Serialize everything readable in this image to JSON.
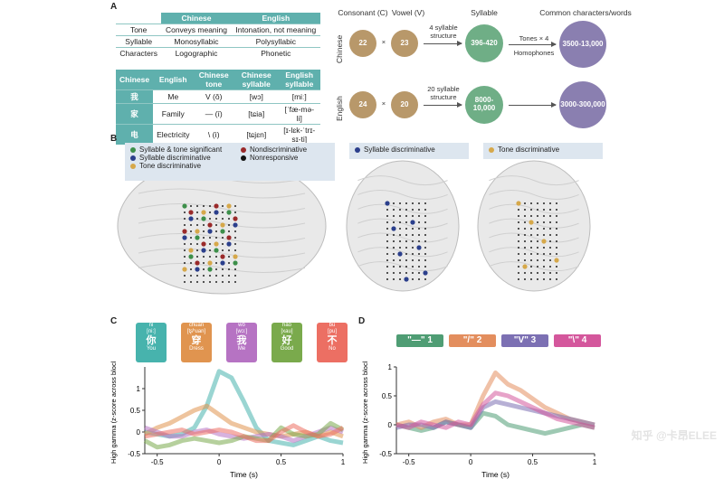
{
  "panels": {
    "a": "A",
    "b": "B",
    "c": "C",
    "d": "D"
  },
  "table1": {
    "headers": [
      "",
      "Chinese",
      "English"
    ],
    "rows": [
      [
        "Tone",
        "Conveys meaning",
        "Intonation, not meaning"
      ],
      [
        "Syllable",
        "Monosyllabic",
        "Polysyllabic"
      ],
      [
        "Characters",
        "Logographic",
        "Phonetic"
      ]
    ]
  },
  "table2": {
    "headers": [
      "Chinese",
      "English",
      "Chinese tone",
      "Chinese syllable",
      "English syllable"
    ],
    "rows": [
      [
        "我",
        "Me",
        "V (ǒ)",
        "[wɔ]",
        "[miː]"
      ],
      [
        "家",
        "Family",
        "— (ī)",
        "[tɕia]",
        "[ˈfæ-mə-li]"
      ],
      [
        "电",
        "Electricity",
        "\\ (ì)",
        "[tɕjɛn]",
        "[ɪ-lɛk-ˈtrɪ-sɪ-ti]"
      ]
    ]
  },
  "flow": {
    "col_consonant": "Consonant (C)",
    "col_vowel": "Vowel (V)",
    "col_syllable": "Syllable",
    "col_common": "Common characters/words",
    "times": "×",
    "chinese": {
      "label": "Chinese",
      "c": "22",
      "v": "23",
      "structure": "4 syllable structure",
      "syllable": "396-420",
      "tones": "Tones × 4",
      "homophones": "Homophones",
      "words": "3500-13,000"
    },
    "english": {
      "label": "English",
      "c": "24",
      "v": "20",
      "structure": "20 syllable structure",
      "syllable": "8000-10,000",
      "words": "3000-300,000"
    }
  },
  "legend1": {
    "items": [
      {
        "label": "Syllable & tone significant",
        "color": "#3d8f4a"
      },
      {
        "label": "Syllable discriminative",
        "color": "#2b3f8c"
      },
      {
        "label": "Tone discriminative",
        "color": "#d6a84a"
      },
      {
        "label": "Nondiscriminative",
        "color": "#9a2a2a"
      },
      {
        "label": "Nonresponsive",
        "color": "#111111"
      }
    ]
  },
  "legend2": {
    "label": "Syllable discriminative",
    "color": "#2b3f8c"
  },
  "legend3": {
    "label": "Tone discriminative",
    "color": "#d6a84a"
  },
  "syllables": [
    {
      "pinyin": "nǐ",
      "ipa": "[ni:]",
      "char": "你",
      "gloss": "You",
      "color": "#47b3ad"
    },
    {
      "pinyin": "chuān",
      "ipa": "[tʂʰuan]",
      "char": "穿",
      "gloss": "Dress",
      "color": "#e0944f"
    },
    {
      "pinyin": "wǒ",
      "ipa": "[wɔ:]",
      "char": "我",
      "gloss": "Me",
      "color": "#b673c3"
    },
    {
      "pinyin": "hǎo",
      "ipa": "[xau]",
      "char": "好",
      "gloss": "Good",
      "color": "#7aaa4c"
    },
    {
      "pinyin": "bù",
      "ipa": "[pu]",
      "char": "不",
      "gloss": "No",
      "color": "#ec6f63"
    }
  ],
  "tones": [
    {
      "label": "\"—\" 1",
      "color": "#4f9d74"
    },
    {
      "label": "\"/\" 2",
      "color": "#e38e5e"
    },
    {
      "label": "\"V\" 3",
      "color": "#7c70b3"
    },
    {
      "label": "\"\\\" 4",
      "color": "#d4579c"
    }
  ],
  "watermark": "知乎 @卡昂ELEE",
  "chart_data": [
    {
      "type": "line",
      "title": "",
      "xlabel": "Time (s)",
      "ylabel": "High gamma (z-score across block)",
      "xlim": [
        -0.6,
        1.0
      ],
      "ylim": [
        -0.5,
        1.5
      ],
      "xticks": [
        -0.5,
        0,
        0.5,
        1
      ],
      "yticks": [
        -0.5,
        0,
        0.5,
        1
      ],
      "x": [
        -0.6,
        -0.5,
        -0.4,
        -0.3,
        -0.2,
        -0.1,
        0.0,
        0.1,
        0.2,
        0.3,
        0.4,
        0.5,
        0.6,
        0.7,
        0.8,
        0.9,
        1.0
      ],
      "series": [
        {
          "name": "nǐ",
          "color": "#47b3ad",
          "values": [
            0.0,
            -0.05,
            -0.1,
            -0.05,
            0.1,
            0.6,
            1.4,
            1.25,
            0.7,
            0.1,
            -0.2,
            -0.25,
            -0.3,
            -0.2,
            -0.1,
            -0.2,
            -0.25
          ]
        },
        {
          "name": "chuān",
          "color": "#e0944f",
          "values": [
            -0.05,
            0.1,
            0.2,
            0.35,
            0.5,
            0.6,
            0.4,
            0.2,
            0.1,
            0.0,
            -0.05,
            -0.1,
            -0.05,
            0.0,
            -0.1,
            0.0,
            -0.1
          ]
        },
        {
          "name": "wǒ",
          "color": "#b673c3",
          "values": [
            0.1,
            0.0,
            -0.1,
            -0.1,
            0.0,
            0.05,
            -0.05,
            -0.1,
            -0.15,
            -0.1,
            -0.05,
            -0.1,
            -0.2,
            -0.1,
            0.0,
            0.1,
            0.0
          ]
        },
        {
          "name": "hǎo",
          "color": "#7aaa4c",
          "values": [
            -0.2,
            -0.35,
            -0.3,
            -0.2,
            -0.15,
            -0.2,
            -0.25,
            -0.2,
            -0.1,
            -0.15,
            -0.2,
            0.1,
            -0.05,
            -0.1,
            -0.05,
            0.2,
            0.05
          ]
        },
        {
          "name": "bù",
          "color": "#ec6f63",
          "values": [
            -0.1,
            -0.05,
            0.0,
            0.05,
            -0.05,
            0.0,
            0.05,
            0.0,
            -0.1,
            -0.2,
            -0.2,
            0.0,
            0.15,
            0.0,
            -0.1,
            -0.05,
            0.1
          ]
        }
      ]
    },
    {
      "type": "line",
      "title": "",
      "xlabel": "Time (s)",
      "ylabel": "High gamma (z-score across block)",
      "xlim": [
        -0.6,
        1.0
      ],
      "ylim": [
        -0.5,
        1.0
      ],
      "xticks": [
        -0.5,
        0,
        0.5,
        1
      ],
      "yticks": [
        -0.5,
        0,
        0.5,
        1
      ],
      "x": [
        -0.6,
        -0.5,
        -0.4,
        -0.3,
        -0.2,
        -0.1,
        0.0,
        0.1,
        0.2,
        0.3,
        0.4,
        0.5,
        0.6,
        0.7,
        0.8,
        0.9,
        1.0
      ],
      "series": [
        {
          "name": "Tone 1",
          "color": "#4f9d74",
          "values": [
            0.0,
            -0.05,
            -0.1,
            -0.05,
            0.05,
            0.0,
            -0.05,
            0.2,
            0.15,
            0.0,
            -0.05,
            -0.1,
            -0.15,
            -0.1,
            -0.05,
            0.0,
            -0.05
          ]
        },
        {
          "name": "Tone 2",
          "color": "#e38e5e",
          "values": [
            0.0,
            0.05,
            -0.05,
            0.05,
            0.1,
            0.0,
            0.0,
            0.5,
            0.9,
            0.7,
            0.6,
            0.45,
            0.3,
            0.2,
            0.1,
            0.05,
            0.0
          ]
        },
        {
          "name": "Tone 3",
          "color": "#7c70b3",
          "values": [
            -0.05,
            0.0,
            0.0,
            -0.05,
            0.05,
            0.0,
            -0.05,
            0.3,
            0.4,
            0.35,
            0.3,
            0.25,
            0.2,
            0.15,
            0.1,
            0.05,
            0.0
          ]
        },
        {
          "name": "Tone 4",
          "color": "#d4579c",
          "values": [
            0.0,
            -0.05,
            0.05,
            0.0,
            -0.05,
            0.05,
            0.0,
            0.35,
            0.55,
            0.5,
            0.4,
            0.3,
            0.2,
            0.1,
            0.05,
            0.0,
            -0.05
          ]
        }
      ]
    }
  ]
}
